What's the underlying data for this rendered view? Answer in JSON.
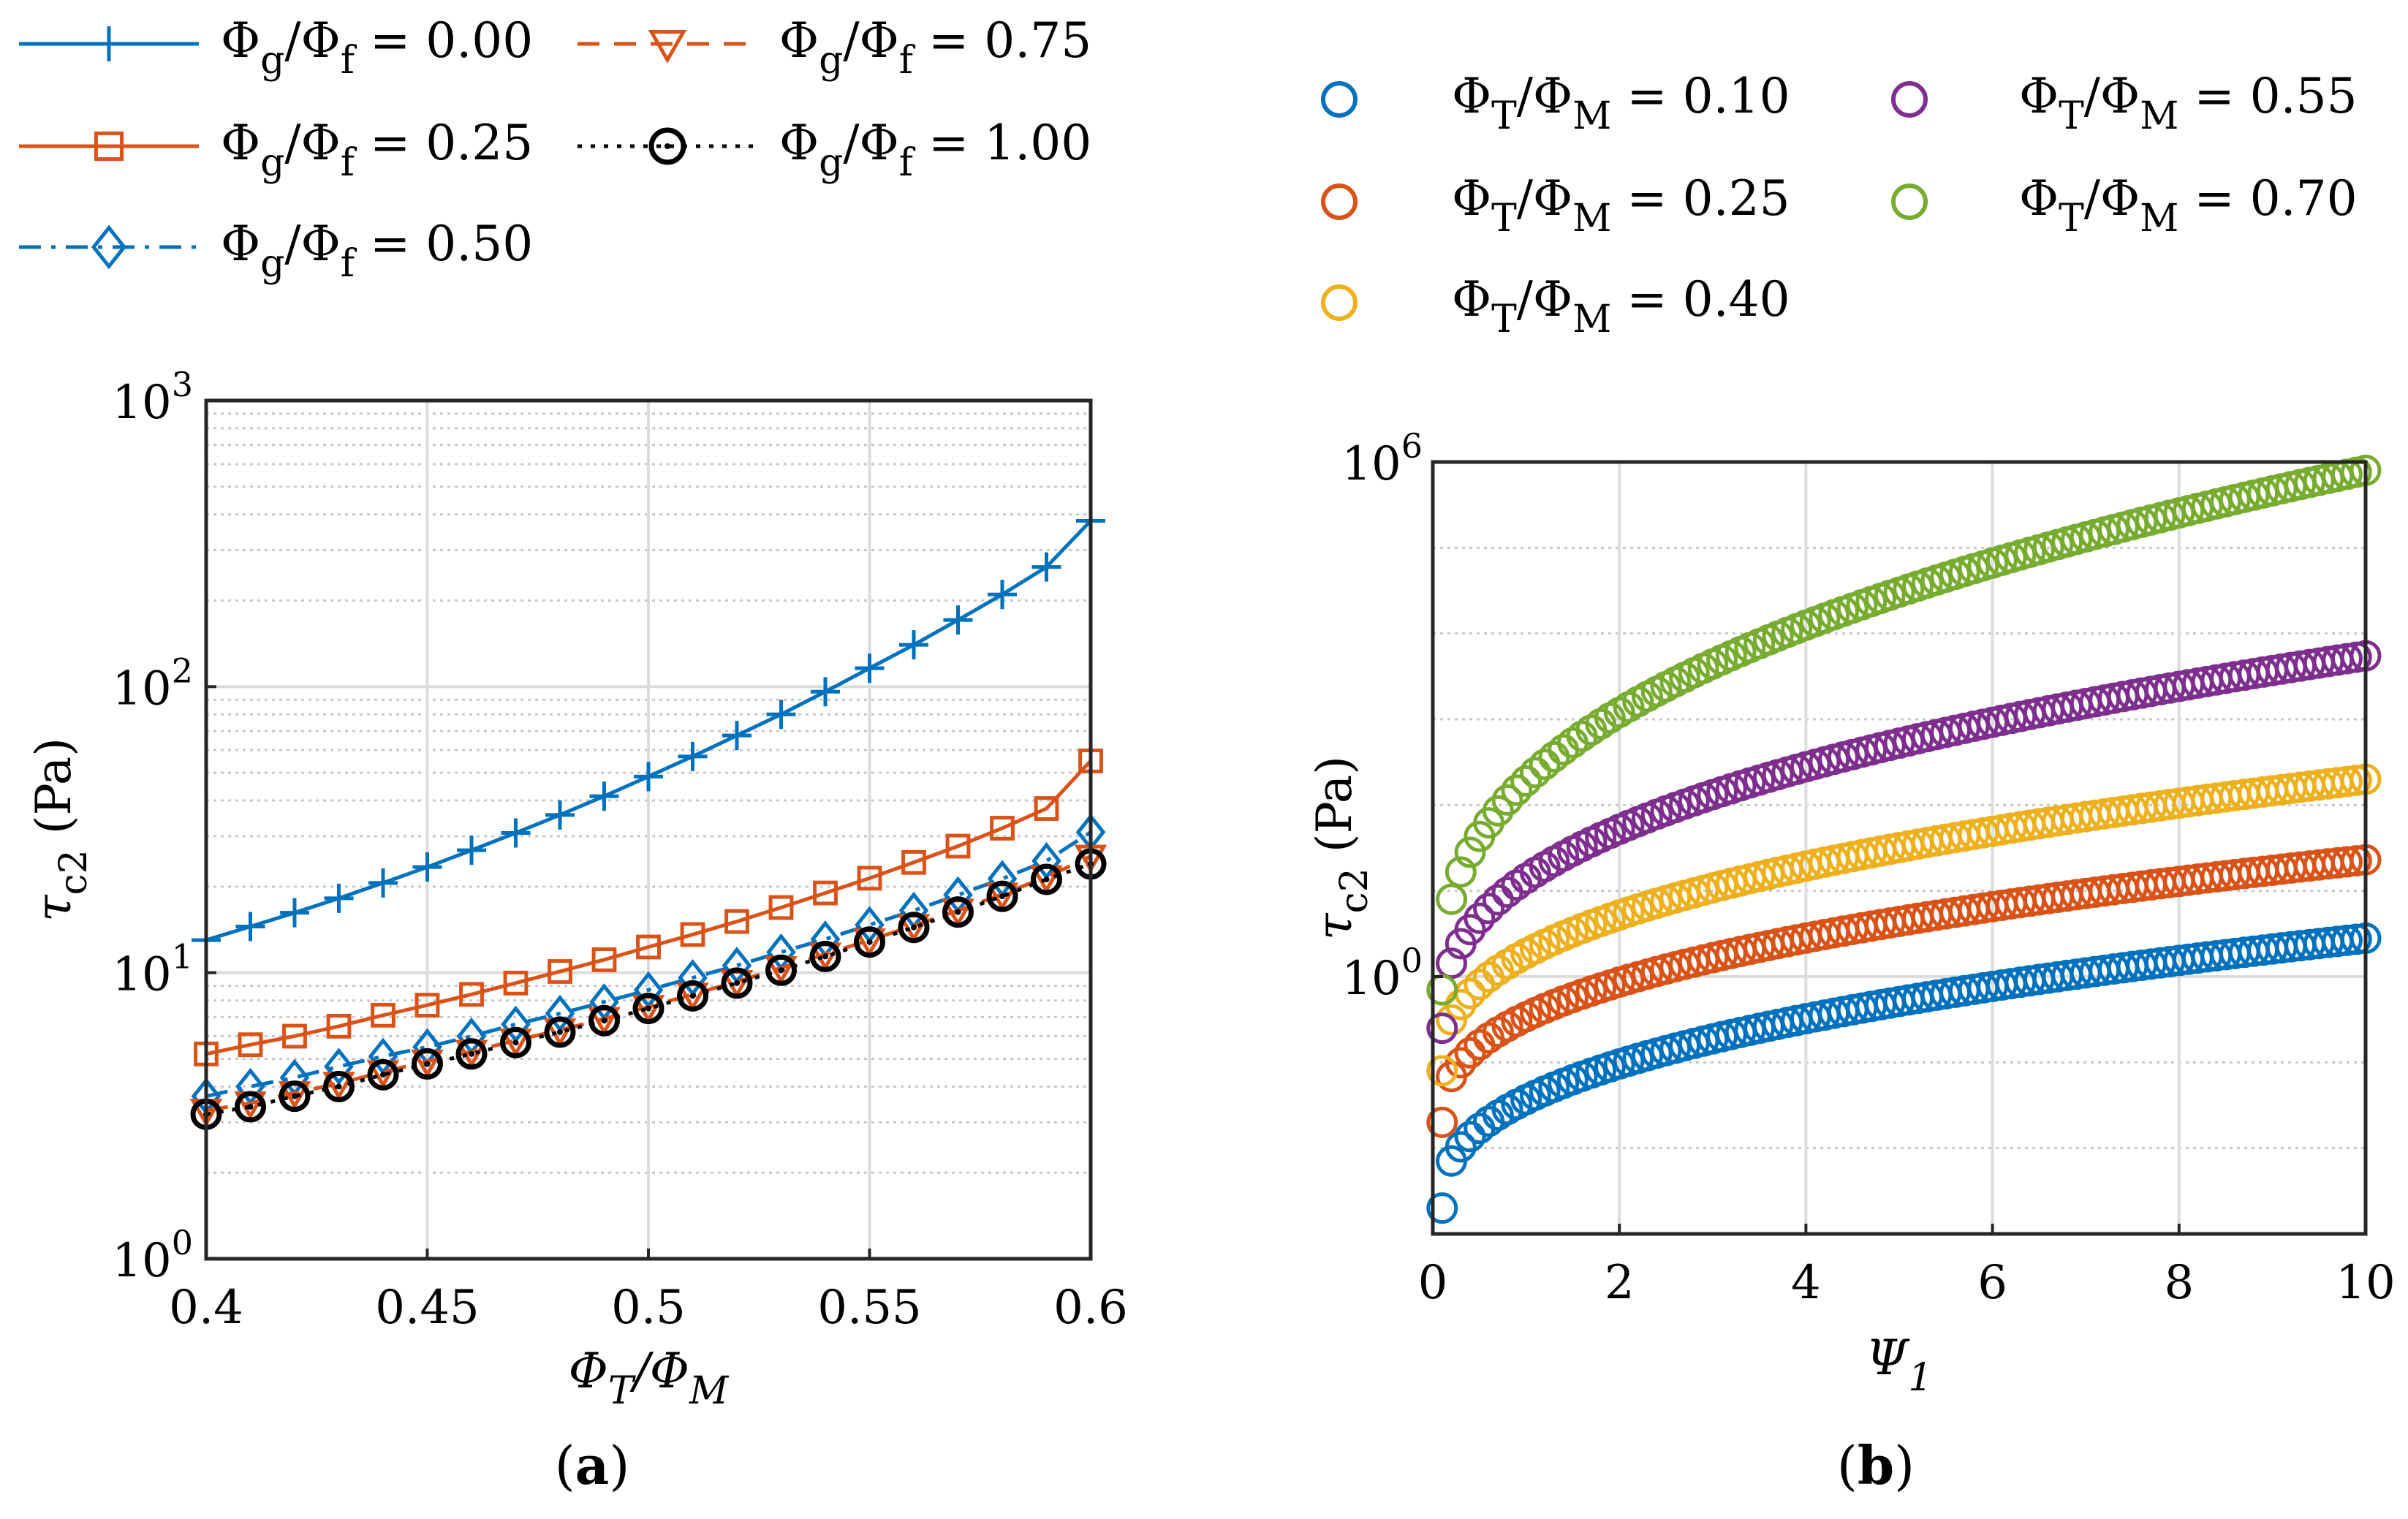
{
  "chart_data": [
    {
      "type": "line",
      "panel_label": "(a)",
      "xlabel": "ΦT/ΦM",
      "ylabel": "τc2 (Pa)",
      "xlim": [
        0.4,
        0.6
      ],
      "ylim": [
        1,
        1000
      ],
      "yscale": "log",
      "grid": true,
      "legend_position": "top",
      "xticks": [
        "0.4",
        "0.45",
        "0.5",
        "0.55",
        "0.6"
      ],
      "yticks": [
        {
          "base": "10",
          "exp": "0"
        },
        {
          "base": "10",
          "exp": "1"
        },
        {
          "base": "10",
          "exp": "2"
        },
        {
          "base": "10",
          "exp": "3"
        }
      ],
      "series": [
        {
          "name": "Φg/Φf = 0.00",
          "label_value": "= 0.00",
          "color": "#0072BD",
          "marker": "plus",
          "line": "solid",
          "x": [
            0.4,
            0.41,
            0.42,
            0.43,
            0.44,
            0.45,
            0.46,
            0.47,
            0.48,
            0.49,
            0.5,
            0.51,
            0.52,
            0.53,
            0.54,
            0.55,
            0.56,
            0.57,
            0.58,
            0.59,
            0.6
          ],
          "values": [
            13,
            14.5,
            16.2,
            18.2,
            20.6,
            23.4,
            26.8,
            30.8,
            35.6,
            41.4,
            48.5,
            57,
            67.5,
            80,
            96,
            116,
            140,
            171,
            210,
            262,
            380
          ]
        },
        {
          "name": "Φg/Φf = 0.25",
          "label_value": "= 0.25",
          "color": "#D95319",
          "marker": "square",
          "line": "solid",
          "x": [
            0.4,
            0.41,
            0.42,
            0.43,
            0.44,
            0.45,
            0.46,
            0.47,
            0.48,
            0.49,
            0.5,
            0.51,
            0.52,
            0.53,
            0.54,
            0.55,
            0.56,
            0.57,
            0.58,
            0.59,
            0.6
          ],
          "values": [
            5.2,
            5.6,
            6.0,
            6.5,
            7.1,
            7.7,
            8.4,
            9.2,
            10.1,
            11.1,
            12.3,
            13.6,
            15.1,
            16.9,
            19,
            21.4,
            24.3,
            27.7,
            32,
            37.5,
            55
          ]
        },
        {
          "name": "Φg/Φf = 0.50",
          "label_value": "= 0.50",
          "color": "#0072BD",
          "marker": "diamond",
          "line": "dashdot",
          "x": [
            0.4,
            0.41,
            0.42,
            0.43,
            0.44,
            0.45,
            0.46,
            0.47,
            0.48,
            0.49,
            0.5,
            0.51,
            0.52,
            0.53,
            0.54,
            0.55,
            0.56,
            0.57,
            0.58,
            0.59,
            0.6
          ],
          "values": [
            3.7,
            4.0,
            4.3,
            4.7,
            5.1,
            5.5,
            6.0,
            6.6,
            7.2,
            7.9,
            8.7,
            9.6,
            10.6,
            11.8,
            13.1,
            14.7,
            16.5,
            18.7,
            21.3,
            24.6,
            31
          ]
        },
        {
          "name": "Φg/Φf = 0.75",
          "label_value": "= 0.75",
          "color": "#D95319",
          "marker": "triangle-down",
          "line": "dashed",
          "x": [
            0.4,
            0.41,
            0.42,
            0.43,
            0.44,
            0.45,
            0.46,
            0.47,
            0.48,
            0.49,
            0.5,
            0.51,
            0.52,
            0.53,
            0.54,
            0.55,
            0.56,
            0.57,
            0.58,
            0.59,
            0.6
          ],
          "values": [
            3.3,
            3.5,
            3.8,
            4.1,
            4.5,
            4.9,
            5.3,
            5.8,
            6.3,
            6.9,
            7.6,
            8.4,
            9.3,
            10.4,
            11.6,
            13,
            14.6,
            16.5,
            18.8,
            21.6,
            25.5
          ]
        },
        {
          "name": "Φg/Φf = 1.00",
          "label_value": "= 1.00",
          "color": "#000000",
          "marker": "circle-dot",
          "line": "dotted",
          "x": [
            0.4,
            0.41,
            0.42,
            0.43,
            0.44,
            0.45,
            0.46,
            0.47,
            0.48,
            0.49,
            0.5,
            0.51,
            0.52,
            0.53,
            0.54,
            0.55,
            0.56,
            0.57,
            0.58,
            0.59,
            0.6
          ],
          "values": [
            3.2,
            3.4,
            3.7,
            4.0,
            4.4,
            4.8,
            5.2,
            5.7,
            6.2,
            6.8,
            7.5,
            8.3,
            9.2,
            10.2,
            11.4,
            12.8,
            14.4,
            16.3,
            18.5,
            21.2,
            24
          ]
        }
      ]
    },
    {
      "type": "scatter",
      "panel_label": "(b)",
      "xlabel": "Ψ1",
      "ylabel": "τc2 (Pa)",
      "xlim": [
        0,
        10
      ],
      "ylim": [
        0.001,
        1000000
      ],
      "yscale": "log",
      "grid": true,
      "legend_position": "top",
      "xticks": [
        "0",
        "2",
        "4",
        "6",
        "8",
        "10"
      ],
      "yticks": [
        {
          "base": "10",
          "exp": "0"
        },
        {
          "base": "10",
          "exp": "6"
        }
      ],
      "x_range": [
        0.1,
        10
      ],
      "points_per_series": 100,
      "series": [
        {
          "name": "ΦT/ΦM = 0.10",
          "label_value": "= 0.10",
          "color": "#0072BD",
          "marker": "circle",
          "y_at_x_min": 0.002,
          "y_at_x_max": 2.8
        },
        {
          "name": "ΦT/ΦM = 0.25",
          "label_value": "= 0.25",
          "color": "#D95319",
          "marker": "circle",
          "y_at_x_min": 0.02,
          "y_at_x_max": 23
        },
        {
          "name": "ΦT/ΦM = 0.40",
          "label_value": "= 0.40",
          "color": "#EDB120",
          "marker": "circle",
          "y_at_x_min": 0.08,
          "y_at_x_max": 200
        },
        {
          "name": "ΦT/ΦM = 0.55",
          "label_value": "= 0.55",
          "color": "#7E2F8E",
          "marker": "circle",
          "y_at_x_min": 0.25,
          "y_at_x_max": 5500
        },
        {
          "name": "ΦT/ΦM = 0.70",
          "label_value": "= 0.70",
          "color": "#77AC30",
          "marker": "circle",
          "y_at_x_min": 0.7,
          "y_at_x_max": 800000
        }
      ]
    }
  ]
}
